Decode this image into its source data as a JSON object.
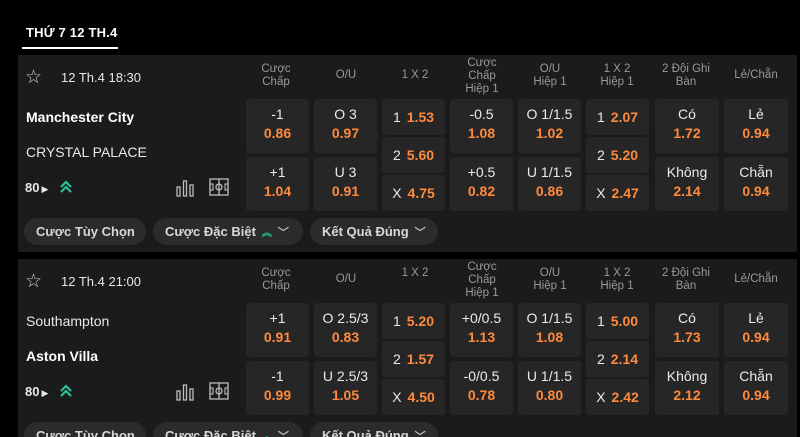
{
  "date_header": "THỨ 7 12 TH.4",
  "columns": [
    {
      "line1": "Cược",
      "line2": "Chấp",
      "line3": ""
    },
    {
      "line1": "O/U",
      "line2": "",
      "line3": ""
    },
    {
      "line1": "1 X 2",
      "line2": "",
      "line3": ""
    },
    {
      "line1": "Cược",
      "line2": "Chấp",
      "line3": "Hiệp 1"
    },
    {
      "line1": "O/U",
      "line2": "Hiệp 1",
      "line3": ""
    },
    {
      "line1": "1 X 2",
      "line2": "Hiệp 1",
      "line3": ""
    },
    {
      "line1": "2 Đội Ghi",
      "line2": "Bàn",
      "line3": ""
    },
    {
      "line1": "Lẻ/Chẵn",
      "line2": "",
      "line3": ""
    }
  ],
  "matches": [
    {
      "time": "12 Th.4 18:30",
      "home": "Manchester City",
      "away": "CRYSTAL PALACE",
      "more_count": "80",
      "handicap": [
        {
          "line": "-1",
          "odd": "0.86"
        },
        {
          "line": "+1",
          "odd": "1.04"
        }
      ],
      "ou": [
        {
          "line": "O 3",
          "odd": "0.97"
        },
        {
          "line": "U 3",
          "odd": "0.91"
        }
      ],
      "x12": [
        {
          "lab": "1",
          "odd": "1.53"
        },
        {
          "lab": "2",
          "odd": "5.60"
        },
        {
          "lab": "X",
          "odd": "4.75"
        }
      ],
      "handicap_h1": [
        {
          "line": "-0.5",
          "odd": "1.08"
        },
        {
          "line": "+0.5",
          "odd": "0.82"
        }
      ],
      "ou_h1": [
        {
          "line": "O 1/1.5",
          "odd": "1.02"
        },
        {
          "line": "U 1/1.5",
          "odd": "0.86"
        }
      ],
      "x12_h1": [
        {
          "lab": "1",
          "odd": "2.07"
        },
        {
          "lab": "2",
          "odd": "5.20"
        },
        {
          "lab": "X",
          "odd": "2.47"
        }
      ],
      "btts": [
        {
          "line": "Có",
          "odd": "1.72"
        },
        {
          "line": "Không",
          "odd": "2.14"
        }
      ],
      "oddeven": [
        {
          "line": "Lẻ",
          "odd": "0.94"
        },
        {
          "line": "Chẵn",
          "odd": "0.94"
        }
      ],
      "pills": [
        "Cược Tùy Chọn",
        "Cược Đặc Biệt",
        "Kết Quả Đúng"
      ]
    },
    {
      "time": "12 Th.4 21:00",
      "home": "Southampton",
      "away": "Aston Villa",
      "more_count": "80",
      "handicap": [
        {
          "line": "+1",
          "odd": "0.91"
        },
        {
          "line": "-1",
          "odd": "0.99"
        }
      ],
      "ou": [
        {
          "line": "O 2.5/3",
          "odd": "0.83"
        },
        {
          "line": "U 2.5/3",
          "odd": "1.05"
        }
      ],
      "x12": [
        {
          "lab": "1",
          "odd": "5.20"
        },
        {
          "lab": "2",
          "odd": "1.57"
        },
        {
          "lab": "X",
          "odd": "4.50"
        }
      ],
      "handicap_h1": [
        {
          "line": "+0/0.5",
          "odd": "1.13"
        },
        {
          "line": "-0/0.5",
          "odd": "0.78"
        }
      ],
      "ou_h1": [
        {
          "line": "O 1/1.5",
          "odd": "1.08"
        },
        {
          "line": "U 1/1.5",
          "odd": "0.80"
        }
      ],
      "x12_h1": [
        {
          "lab": "1",
          "odd": "5.00"
        },
        {
          "lab": "2",
          "odd": "2.14"
        },
        {
          "lab": "X",
          "odd": "2.42"
        }
      ],
      "btts": [
        {
          "line": "Có",
          "odd": "1.73"
        },
        {
          "line": "Không",
          "odd": "2.12"
        }
      ],
      "oddeven": [
        {
          "line": "Lẻ",
          "odd": "0.94"
        },
        {
          "line": "Chẵn",
          "odd": "0.94"
        }
      ],
      "pills": [
        "Cược Tùy Chọn",
        "Cược Đặc Biệt",
        "Kết Quả Đúng"
      ]
    }
  ],
  "colors": {
    "odds": "#ff8a3d",
    "accent": "#29c29a",
    "panel": "#1b1b1b",
    "cell": "#262626"
  }
}
